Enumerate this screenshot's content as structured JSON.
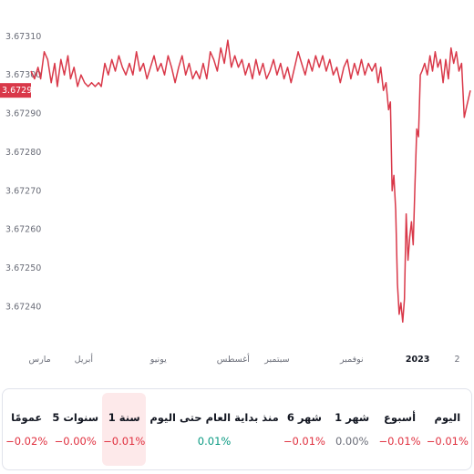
{
  "chart_data": {
    "type": "line",
    "series_color": "#d93849",
    "current_price": "3.67296",
    "ylim": [
      3.67233,
      3.67318
    ],
    "y_ticks": [
      "3.67310",
      "3.67300",
      "3.67290",
      "3.67280",
      "3.67270",
      "3.67260",
      "3.67250",
      "3.67240"
    ],
    "y_tick_values": [
      3.6731,
      3.673,
      3.6729,
      3.6728,
      3.6727,
      3.6726,
      3.6725,
      3.6724
    ],
    "x_tick_labels": [
      {
        "label": "مارس",
        "at": 0.02,
        "bold": false
      },
      {
        "label": "أبريل",
        "at": 0.12,
        "bold": false
      },
      {
        "label": "يونيو",
        "at": 0.29,
        "bold": false
      },
      {
        "label": "أغسطس",
        "at": 0.46,
        "bold": false
      },
      {
        "label": "سبتمبر",
        "at": 0.56,
        "bold": false
      },
      {
        "label": "نوفمبر",
        "at": 0.73,
        "bold": false
      },
      {
        "label": "2023",
        "at": 0.88,
        "bold": true
      },
      {
        "label": "2",
        "at": 0.97,
        "bold": false
      }
    ],
    "x_range": [
      0,
      1
    ],
    "values": [
      [
        0.0,
        3.67301
      ],
      [
        0.008,
        3.67299
      ],
      [
        0.016,
        3.67302
      ],
      [
        0.022,
        3.67299
      ],
      [
        0.03,
        3.67306
      ],
      [
        0.038,
        3.67304
      ],
      [
        0.046,
        3.67298
      ],
      [
        0.054,
        3.67303
      ],
      [
        0.06,
        3.67297
      ],
      [
        0.068,
        3.67304
      ],
      [
        0.076,
        3.673
      ],
      [
        0.084,
        3.67305
      ],
      [
        0.09,
        3.67299
      ],
      [
        0.098,
        3.67302
      ],
      [
        0.106,
        3.67297
      ],
      [
        0.114,
        3.673
      ],
      [
        0.122,
        3.67298
      ],
      [
        0.13,
        3.67297
      ],
      [
        0.138,
        3.67298
      ],
      [
        0.146,
        3.67297
      ],
      [
        0.154,
        3.67298
      ],
      [
        0.16,
        3.67297
      ],
      [
        0.168,
        3.67303
      ],
      [
        0.176,
        3.673
      ],
      [
        0.184,
        3.67304
      ],
      [
        0.192,
        3.67301
      ],
      [
        0.2,
        3.67305
      ],
      [
        0.208,
        3.67302
      ],
      [
        0.216,
        3.673
      ],
      [
        0.224,
        3.67303
      ],
      [
        0.232,
        3.673
      ],
      [
        0.24,
        3.67306
      ],
      [
        0.248,
        3.67301
      ],
      [
        0.256,
        3.67303
      ],
      [
        0.264,
        3.67299
      ],
      [
        0.272,
        3.67302
      ],
      [
        0.28,
        3.67305
      ],
      [
        0.288,
        3.67301
      ],
      [
        0.296,
        3.67303
      ],
      [
        0.304,
        3.673
      ],
      [
        0.312,
        3.67305
      ],
      [
        0.32,
        3.67302
      ],
      [
        0.328,
        3.67298
      ],
      [
        0.336,
        3.67302
      ],
      [
        0.344,
        3.67305
      ],
      [
        0.352,
        3.673
      ],
      [
        0.36,
        3.67303
      ],
      [
        0.368,
        3.67299
      ],
      [
        0.376,
        3.67301
      ],
      [
        0.384,
        3.67299
      ],
      [
        0.392,
        3.67303
      ],
      [
        0.4,
        3.67299
      ],
      [
        0.408,
        3.67306
      ],
      [
        0.416,
        3.67304
      ],
      [
        0.424,
        3.67301
      ],
      [
        0.432,
        3.67307
      ],
      [
        0.44,
        3.67303
      ],
      [
        0.448,
        3.67309
      ],
      [
        0.456,
        3.67302
      ],
      [
        0.464,
        3.67305
      ],
      [
        0.472,
        3.67302
      ],
      [
        0.48,
        3.67304
      ],
      [
        0.488,
        3.673
      ],
      [
        0.496,
        3.67303
      ],
      [
        0.504,
        3.67299
      ],
      [
        0.512,
        3.67304
      ],
      [
        0.52,
        3.673
      ],
      [
        0.528,
        3.67303
      ],
      [
        0.536,
        3.67299
      ],
      [
        0.544,
        3.67301
      ],
      [
        0.552,
        3.67304
      ],
      [
        0.56,
        3.673
      ],
      [
        0.568,
        3.67303
      ],
      [
        0.576,
        3.67299
      ],
      [
        0.584,
        3.67302
      ],
      [
        0.592,
        3.67298
      ],
      [
        0.6,
        3.67302
      ],
      [
        0.608,
        3.67306
      ],
      [
        0.616,
        3.67303
      ],
      [
        0.624,
        3.673
      ],
      [
        0.632,
        3.67304
      ],
      [
        0.64,
        3.67301
      ],
      [
        0.648,
        3.67305
      ],
      [
        0.656,
        3.67302
      ],
      [
        0.664,
        3.67305
      ],
      [
        0.672,
        3.67301
      ],
      [
        0.68,
        3.67304
      ],
      [
        0.688,
        3.673
      ],
      [
        0.696,
        3.67302
      ],
      [
        0.704,
        3.67298
      ],
      [
        0.712,
        3.67302
      ],
      [
        0.72,
        3.67304
      ],
      [
        0.728,
        3.67299
      ],
      [
        0.736,
        3.67303
      ],
      [
        0.744,
        3.673
      ],
      [
        0.752,
        3.67304
      ],
      [
        0.76,
        3.673
      ],
      [
        0.768,
        3.67303
      ],
      [
        0.776,
        3.67301
      ],
      [
        0.784,
        3.67303
      ],
      [
        0.79,
        3.67298
      ],
      [
        0.796,
        3.67302
      ],
      [
        0.802,
        3.67296
      ],
      [
        0.808,
        3.67298
      ],
      [
        0.814,
        3.67291
      ],
      [
        0.818,
        3.67293
      ],
      [
        0.822,
        3.6727
      ],
      [
        0.826,
        3.67274
      ],
      [
        0.83,
        3.67265
      ],
      [
        0.834,
        3.67246
      ],
      [
        0.838,
        3.67238
      ],
      [
        0.842,
        3.67241
      ],
      [
        0.846,
        3.67236
      ],
      [
        0.85,
        3.67242
      ],
      [
        0.854,
        3.67264
      ],
      [
        0.858,
        3.67252
      ],
      [
        0.862,
        3.67258
      ],
      [
        0.866,
        3.67262
      ],
      [
        0.87,
        3.67256
      ],
      [
        0.874,
        3.67272
      ],
      [
        0.878,
        3.67286
      ],
      [
        0.882,
        3.67284
      ],
      [
        0.886,
        3.673
      ],
      [
        0.89,
        3.67301
      ],
      [
        0.896,
        3.67303
      ],
      [
        0.902,
        3.673
      ],
      [
        0.908,
        3.67305
      ],
      [
        0.914,
        3.67301
      ],
      [
        0.92,
        3.67306
      ],
      [
        0.926,
        3.67302
      ],
      [
        0.932,
        3.67304
      ],
      [
        0.938,
        3.67298
      ],
      [
        0.944,
        3.67304
      ],
      [
        0.95,
        3.67299
      ],
      [
        0.956,
        3.67307
      ],
      [
        0.962,
        3.67303
      ],
      [
        0.968,
        3.67306
      ],
      [
        0.974,
        3.67301
      ],
      [
        0.98,
        3.67303
      ],
      [
        0.986,
        3.67289
      ],
      [
        0.992,
        3.67292
      ],
      [
        1.0,
        3.67296
      ]
    ]
  },
  "periods": [
    {
      "label": "اليوم",
      "value": "‎−0.01%",
      "trend": "neg",
      "selected": false
    },
    {
      "label": "أسبوع",
      "value": "‎−0.01%",
      "trend": "neg",
      "selected": false
    },
    {
      "label": "1 شهر",
      "value": "0.00%",
      "trend": "neu",
      "selected": false
    },
    {
      "label": "6 شهر",
      "value": "‎−0.01%",
      "trend": "neg",
      "selected": false
    },
    {
      "label": "منذ بداية العام حتى اليوم",
      "value": "0.01%",
      "trend": "pos",
      "selected": false
    },
    {
      "label": "1 سنة",
      "value": "‎−0.01%",
      "trend": "neg",
      "selected": true
    },
    {
      "label": "5 سنوات",
      "value": "‎−0.00%",
      "trend": "neg",
      "selected": false
    },
    {
      "label": "عمومًا",
      "value": "‎−0.02%",
      "trend": "neg",
      "selected": false
    }
  ]
}
